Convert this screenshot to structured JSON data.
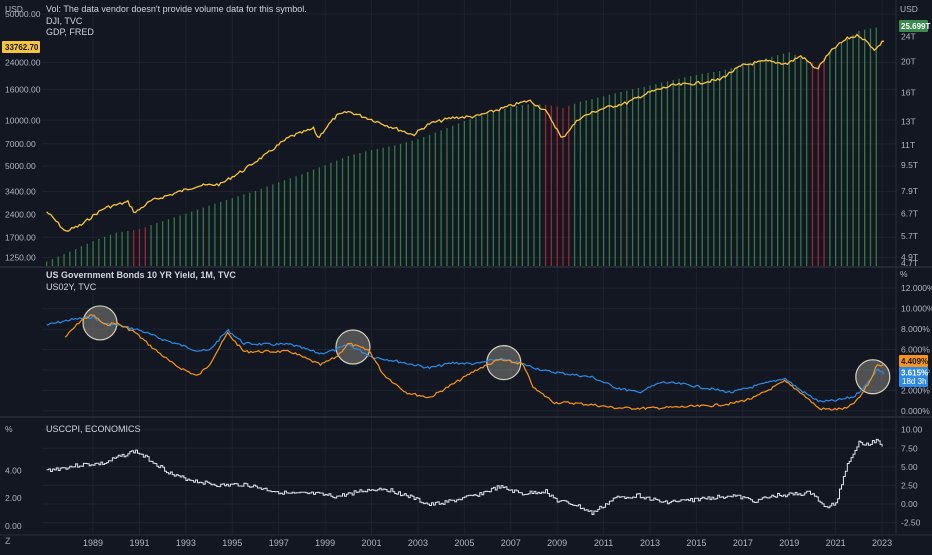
{
  "colors": {
    "background": "#131722",
    "grid": "#1e222d",
    "separator": "#2a2e39",
    "dji_line": "#f5c542",
    "gdp_up": "#3b8a4d",
    "gdp_down": "#b52a36",
    "yield10": "#f7941d",
    "yield2": "#2f8ae6",
    "cpi": "#e0e3eb",
    "circle": "#f2ead0"
  },
  "panes": {
    "top": {
      "unit_left": "USD",
      "unit_right": "USD",
      "legends": [
        "Vol: The data vendor doesn't provide volume data for this symbol.",
        "DJI, TVC",
        "GDP, FRED"
      ],
      "left_ticks": [
        "50000.00",
        "24000.00",
        "16000.00",
        "10000.00",
        "7000.00",
        "5000.00",
        "3400.00",
        "2400.00",
        "1700.00",
        "1250.00"
      ],
      "right_ticks": [
        "24T",
        "20T",
        "16T",
        "13T",
        "11T",
        "9.5T",
        "7.9T",
        "6.7T",
        "5.7T",
        "4.9T",
        "4.7T"
      ],
      "dji_badge": "33762.70",
      "gdp_badge": "25.699T"
    },
    "middle": {
      "unit_right": "%",
      "legend_title": "US Government Bonds 10 YR Yield, 1M, TVC",
      "legend_sub": "US02Y, TVC",
      "right_ticks": [
        "12.000%",
        "10.000%",
        "8.000%",
        "6.000%",
        "4.000%",
        "2.000%",
        "0.000%"
      ],
      "badge_10y": "4.409%",
      "badge_2y": "3.615%",
      "badge_2y_countdown": "18d 3h"
    },
    "bottom": {
      "unit_left": "%",
      "legend": "USCCPI, ECONOMICS",
      "left_ticks": [
        "4.00",
        "2.00",
        "0.00"
      ],
      "right_ticks": [
        "10.00",
        "7.50",
        "5.00",
        "2.50",
        "0.00",
        "-2.50"
      ]
    }
  },
  "time_axis": {
    "years": [
      "1989",
      "1991",
      "1993",
      "1995",
      "1997",
      "1999",
      "2001",
      "2003",
      "2005",
      "2007",
      "2009",
      "2011",
      "2013",
      "2015",
      "2017",
      "2019",
      "2021",
      "2023"
    ],
    "corner_icon": "tradingview-logo-icon"
  },
  "chart_data": [
    {
      "type": "line",
      "pane": "top",
      "series": [
        {
          "name": "DJI, TVC",
          "color": "#f5c542",
          "x": [
            1987.0,
            1987.8,
            1988.5,
            1989.5,
            1990.5,
            1990.8,
            1991.5,
            1992.5,
            1993.5,
            1994.5,
            1995.5,
            1996.5,
            1997.5,
            1998.5,
            1998.7,
            1999.5,
            2000.0,
            2000.7,
            2001.7,
            2002.8,
            2003.5,
            2004.5,
            2005.5,
            2006.5,
            2007.8,
            2008.5,
            2009.2,
            2010.0,
            2011.0,
            2012.0,
            2013.0,
            2014.0,
            2015.0,
            2016.0,
            2017.0,
            2018.0,
            2018.9,
            2019.5,
            2020.2,
            2020.9,
            2021.5,
            2022.0,
            2022.7,
            2023.1
          ],
          "values": [
            2500,
            1850,
            2050,
            2650,
            2900,
            2450,
            2950,
            3300,
            3700,
            3800,
            4700,
            6000,
            7800,
            8800,
            7600,
            10700,
            11400,
            10500,
            9200,
            8000,
            9500,
            10400,
            10600,
            11800,
            13500,
            11500,
            7500,
            10400,
            12000,
            13000,
            15300,
            17000,
            17500,
            18500,
            23000,
            24500,
            23500,
            26500,
            21500,
            29500,
            34500,
            36300,
            29000,
            33762.7
          ]
        }
      ],
      "ylim": [
        1100,
        60000
      ],
      "scale": "log"
    },
    {
      "type": "bar",
      "pane": "top",
      "series": [
        {
          "name": "GDP, FRED",
          "color_up": "#3b8a4d",
          "color_down": "#b52a36",
          "x": [
            1987.0,
            1988.0,
            1989.0,
            1990.0,
            1990.75,
            1991.0,
            1992.0,
            1993.0,
            1994.0,
            1995.0,
            1996.0,
            1997.0,
            1998.0,
            1999.0,
            2000.0,
            2001.0,
            2002.0,
            2003.0,
            2004.0,
            2005.0,
            2006.0,
            2007.0,
            2008.0,
            2008.75,
            2009.25,
            2010.0,
            2011.0,
            2012.0,
            2013.0,
            2014.0,
            2015.0,
            2016.0,
            2017.0,
            2018.0,
            2019.0,
            2020.25,
            2020.75,
            2021.0,
            2022.0,
            2022.9
          ],
          "values": [
            4.75,
            5.1,
            5.5,
            5.85,
            5.95,
            6.0,
            6.35,
            6.7,
            7.1,
            7.5,
            7.9,
            8.4,
            8.9,
            9.5,
            10.15,
            10.6,
            10.95,
            11.45,
            12.2,
            13.05,
            13.8,
            14.45,
            14.8,
            14.6,
            14.35,
            15.0,
            15.6,
            16.25,
            16.85,
            17.55,
            18.2,
            18.7,
            19.5,
            20.5,
            21.4,
            19.5,
            21.5,
            22.1,
            25.0,
            25.699
          ]
        }
      ],
      "down_periods": [
        [
          1990.6,
          1991.25
        ],
        [
          2008.5,
          2009.6
        ],
        [
          2020.0,
          2020.5
        ]
      ],
      "ylim": [
        4.6,
        27.0
      ],
      "scale": "log"
    },
    {
      "type": "line",
      "pane": "middle",
      "series": [
        {
          "name": "US Government Bonds 10 YR Yield",
          "color": "#f7941d",
          "x": [
            1987.8,
            1988.5,
            1989.0,
            1989.5,
            1990.0,
            1990.8,
            1991.5,
            1992.5,
            1993.5,
            1994.0,
            1994.8,
            1995.5,
            1996.5,
            1997.5,
            1998.8,
            1999.5,
            2000.0,
            2000.9,
            2001.5,
            2002.5,
            2003.5,
            2004.5,
            2005.5,
            2006.5,
            2007.5,
            2008.0,
            2008.9,
            2009.5,
            2010.5,
            2011.5,
            2012.5,
            2013.5,
            2014.5,
            2015.5,
            2016.5,
            2017.5,
            2018.8,
            2019.5,
            2020.3,
            2020.9,
            2021.5,
            2022.0,
            2022.5,
            2022.8,
            2023.1
          ],
          "values": [
            7.2,
            8.9,
            9.4,
            8.4,
            8.6,
            7.7,
            6.3,
            4.5,
            3.4,
            4.5,
            7.6,
            5.8,
            5.8,
            5.8,
            4.5,
            5.3,
            6.6,
            5.9,
            3.6,
            1.8,
            1.3,
            2.6,
            4.0,
            5.0,
            4.6,
            2.2,
            0.8,
            0.8,
            0.6,
            0.3,
            0.25,
            0.3,
            0.4,
            0.5,
            0.7,
            1.3,
            2.9,
            1.8,
            0.2,
            0.15,
            0.25,
            1.2,
            3.0,
            4.6,
            4.409
          ]
        },
        {
          "name": "US02Y, TVC",
          "color": "#2f8ae6",
          "x": [
            1987.0,
            1988.0,
            1989.0,
            1989.5,
            1990.0,
            1991.0,
            1992.0,
            1993.5,
            1994.0,
            1994.8,
            1995.5,
            1996.5,
            1997.5,
            1998.8,
            1999.5,
            2000.0,
            2001.0,
            2002.0,
            2003.5,
            2004.5,
            2005.5,
            2006.5,
            2007.5,
            2008.5,
            2009.5,
            2010.5,
            2011.5,
            2012.5,
            2013.5,
            2014.5,
            2015.5,
            2016.5,
            2017.5,
            2018.8,
            2019.5,
            2020.3,
            2021.0,
            2021.8,
            2022.3,
            2022.8,
            2023.1
          ],
          "values": [
            8.4,
            8.9,
            9.2,
            8.5,
            8.4,
            7.9,
            7.0,
            5.9,
            5.9,
            7.9,
            6.6,
            6.5,
            6.5,
            5.6,
            6.0,
            6.5,
            5.3,
            4.9,
            4.2,
            4.7,
            4.6,
            5.1,
            4.6,
            3.9,
            3.6,
            3.3,
            2.3,
            1.8,
            2.8,
            2.6,
            2.2,
            1.8,
            2.4,
            3.2,
            2.0,
            0.9,
            1.0,
            1.4,
            2.5,
            4.1,
            3.615
          ]
        }
      ],
      "highlight_circles_at": [
        1989.3,
        2000.2,
        2006.7,
        2022.6
      ],
      "ylim": [
        -0.5,
        13.0
      ]
    },
    {
      "type": "line",
      "pane": "bottom",
      "series": [
        {
          "name": "USCCPI, ECONOMICS",
          "color": "#e0e3eb",
          "x": [
            1987.0,
            1987.8,
            1988.5,
            1989.5,
            1990.0,
            1990.8,
            1991.5,
            1992.5,
            1993.5,
            1994.5,
            1995.5,
            1996.5,
            1997.5,
            1998.5,
            1999.5,
            2000.5,
            2001.5,
            2002.5,
            2003.5,
            2004.5,
            2005.5,
            2006.5,
            2007.5,
            2008.5,
            2009.0,
            2009.8,
            2010.5,
            2011.5,
            2012.5,
            2013.5,
            2014.5,
            2015.5,
            2016.5,
            2017.5,
            2018.5,
            2019.5,
            2020.0,
            2020.5,
            2021.0,
            2021.5,
            2022.0,
            2022.5,
            2022.8,
            2023.0
          ],
          "values": [
            4.0,
            4.2,
            4.4,
            4.5,
            4.9,
            5.4,
            4.7,
            3.6,
            3.2,
            2.9,
            3.0,
            2.6,
            2.3,
            2.3,
            2.1,
            2.5,
            2.7,
            2.2,
            1.5,
            1.8,
            2.2,
            2.8,
            2.3,
            2.5,
            1.8,
            1.5,
            0.9,
            2.0,
            2.2,
            1.7,
            1.8,
            2.0,
            2.2,
            1.8,
            2.2,
            2.3,
            2.4,
            1.3,
            1.6,
            4.5,
            6.0,
            5.9,
            6.3,
            5.6
          ]
        }
      ],
      "ylim": [
        -0.3,
        7.2
      ],
      "left_axis_ticks": [
        4.0,
        2.0,
        0.0
      ]
    }
  ]
}
